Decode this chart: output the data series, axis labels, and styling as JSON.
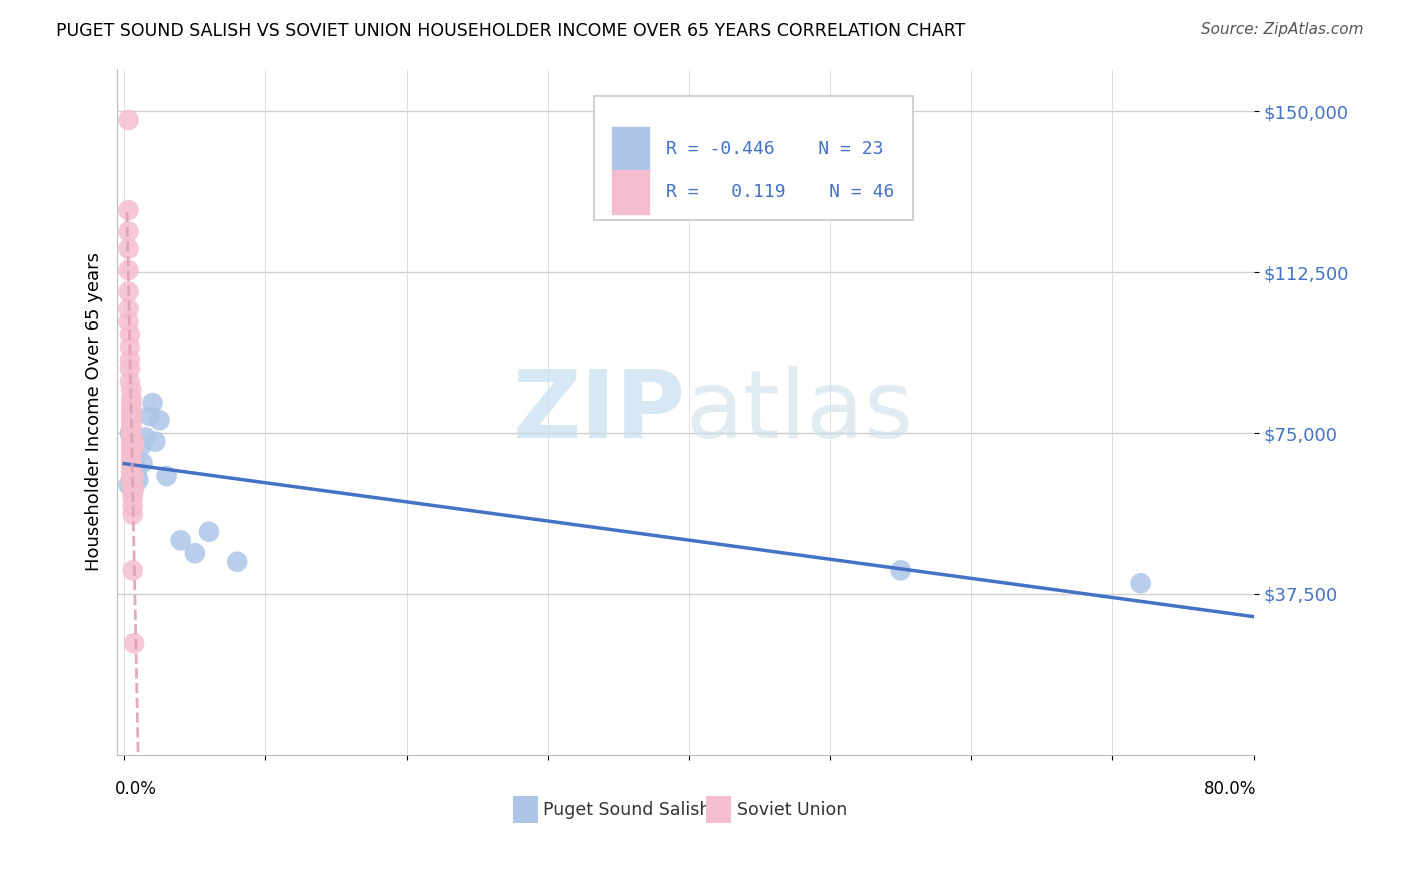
{
  "title": "PUGET SOUND SALISH VS SOVIET UNION HOUSEHOLDER INCOME OVER 65 YEARS CORRELATION CHART",
  "source": "Source: ZipAtlas.com",
  "ylabel": "Householder Income Over 65 years",
  "watermark_zip": "ZIP",
  "watermark_atlas": "atlas",
  "ytick_vals": [
    37500,
    75000,
    112500,
    150000
  ],
  "ytick_labels": [
    "$37,500",
    "$75,000",
    "$112,500",
    "$150,000"
  ],
  "xlim": [
    -0.005,
    0.8
  ],
  "ylim": [
    0,
    160000
  ],
  "blue_R": -0.446,
  "blue_N": 23,
  "pink_R": 0.119,
  "pink_N": 46,
  "blue_color": "#adc6e8",
  "pink_color": "#f5bece",
  "blue_line_color": "#4472c4",
  "pink_line_color": "#e0a0b8",
  "legend_blue_label": "Puget Sound Salish",
  "legend_pink_label": "Soviet Union",
  "blue_x": [
    0.003,
    0.004,
    0.005,
    0.005,
    0.006,
    0.007,
    0.008,
    0.009,
    0.01,
    0.012,
    0.013,
    0.015,
    0.018,
    0.02,
    0.022,
    0.025,
    0.03,
    0.04,
    0.05,
    0.06,
    0.08,
    0.55,
    0.72
  ],
  "blue_y": [
    63000,
    75000,
    76000,
    65000,
    72000,
    70000,
    67000,
    65000,
    64000,
    72000,
    68000,
    74000,
    79000,
    82000,
    73000,
    78000,
    65000,
    50000,
    47000,
    52000,
    45000,
    43000,
    40000
  ],
  "pink_x": [
    0.003,
    0.003,
    0.003,
    0.003,
    0.003,
    0.003,
    0.003,
    0.003,
    0.004,
    0.004,
    0.004,
    0.004,
    0.004,
    0.005,
    0.005,
    0.005,
    0.005,
    0.005,
    0.005,
    0.005,
    0.005,
    0.005,
    0.005,
    0.005,
    0.005,
    0.005,
    0.005,
    0.005,
    0.005,
    0.005,
    0.005,
    0.005,
    0.005,
    0.005,
    0.006,
    0.006,
    0.006,
    0.006,
    0.006,
    0.006,
    0.006,
    0.007,
    0.007,
    0.007,
    0.007,
    0.007
  ],
  "pink_y": [
    148000,
    127000,
    122000,
    118000,
    113000,
    108000,
    104000,
    101000,
    98000,
    95000,
    92000,
    90000,
    87000,
    85000,
    83000,
    82000,
    81000,
    80000,
    79000,
    78000,
    77000,
    76000,
    75000,
    74000,
    73000,
    72000,
    71000,
    70000,
    69000,
    68000,
    67000,
    66000,
    65000,
    64000,
    63000,
    62000,
    61000,
    60000,
    58000,
    56000,
    43000,
    73000,
    72000,
    65000,
    62000,
    26000
  ],
  "blue_line_x0": 0.0,
  "blue_line_x1": 0.8,
  "blue_line_y0": 68000,
  "blue_line_y1": 35000,
  "pink_line_x0": 0.002,
  "pink_line_x1": 0.012,
  "pink_line_y0": 63000,
  "pink_line_y1": 148000
}
